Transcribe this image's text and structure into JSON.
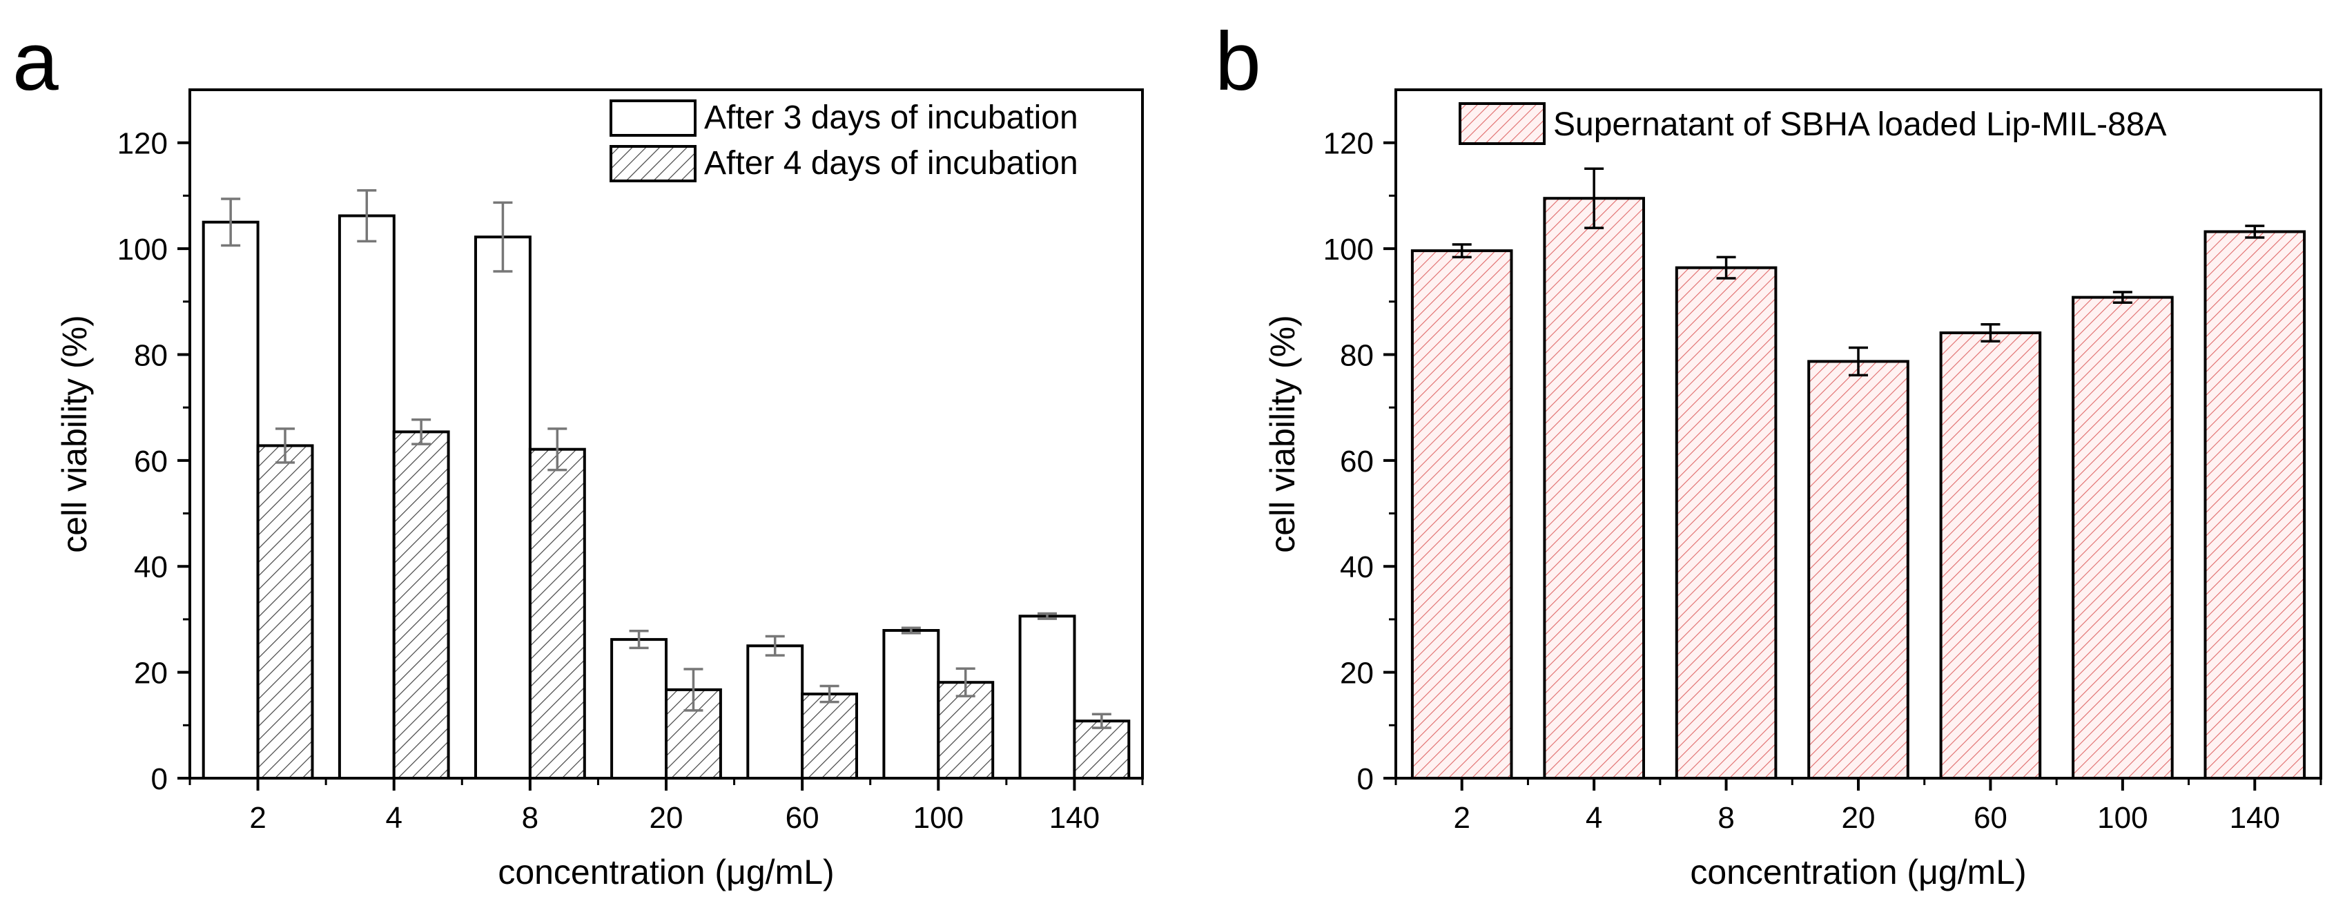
{
  "chart_data": [
    {
      "panel_label": "a",
      "type": "bar",
      "xlabel": "concentration (μg/mL)",
      "ylabel": "cell viability (%)",
      "ylim": [
        0,
        130
      ],
      "yticks": [
        0,
        20,
        40,
        60,
        80,
        100,
        120
      ],
      "categories": [
        "2",
        "4",
        "8",
        "20",
        "60",
        "100",
        "140"
      ],
      "legend_position": "top-right",
      "series": [
        {
          "name": "After 3 days of incubation",
          "style": "open",
          "values": [
            105,
            106.2,
            102.2,
            26.2,
            25,
            27.9,
            30.6
          ],
          "errors": [
            4.4,
            4.8,
            6.5,
            1.6,
            1.8,
            0.5,
            0.5
          ]
        },
        {
          "name": "After 4 days of incubation",
          "style": "hatched-gray",
          "values": [
            62.8,
            65.4,
            62.1,
            16.7,
            15.9,
            18.1,
            10.8
          ],
          "errors": [
            3.2,
            2.3,
            3.9,
            3.9,
            1.5,
            2.6,
            1.3
          ]
        }
      ]
    },
    {
      "panel_label": "b",
      "type": "bar",
      "xlabel": "concentration (μg/mL)",
      "ylabel": "cell viability (%)",
      "ylim": [
        0,
        130
      ],
      "yticks": [
        0,
        20,
        40,
        60,
        80,
        100,
        120
      ],
      "categories": [
        "2",
        "4",
        "8",
        "20",
        "60",
        "100",
        "140"
      ],
      "legend_position": "top-center",
      "series": [
        {
          "name": "Supernatant of SBHA loaded Lip-MIL-88A",
          "style": "hatched-red",
          "values": [
            99.6,
            109.5,
            96.4,
            78.7,
            84.1,
            90.8,
            103.2
          ],
          "errors": [
            1.2,
            5.6,
            2.0,
            2.6,
            1.6,
            1.0,
            1.1
          ]
        }
      ]
    }
  ],
  "colors": {
    "axis": "#000000",
    "hatch_gray": "#555555",
    "hatch_red": "#e07070",
    "bar_fill_red": "#fde6e6",
    "error_gray": "#777777",
    "error_black": "#000000"
  }
}
